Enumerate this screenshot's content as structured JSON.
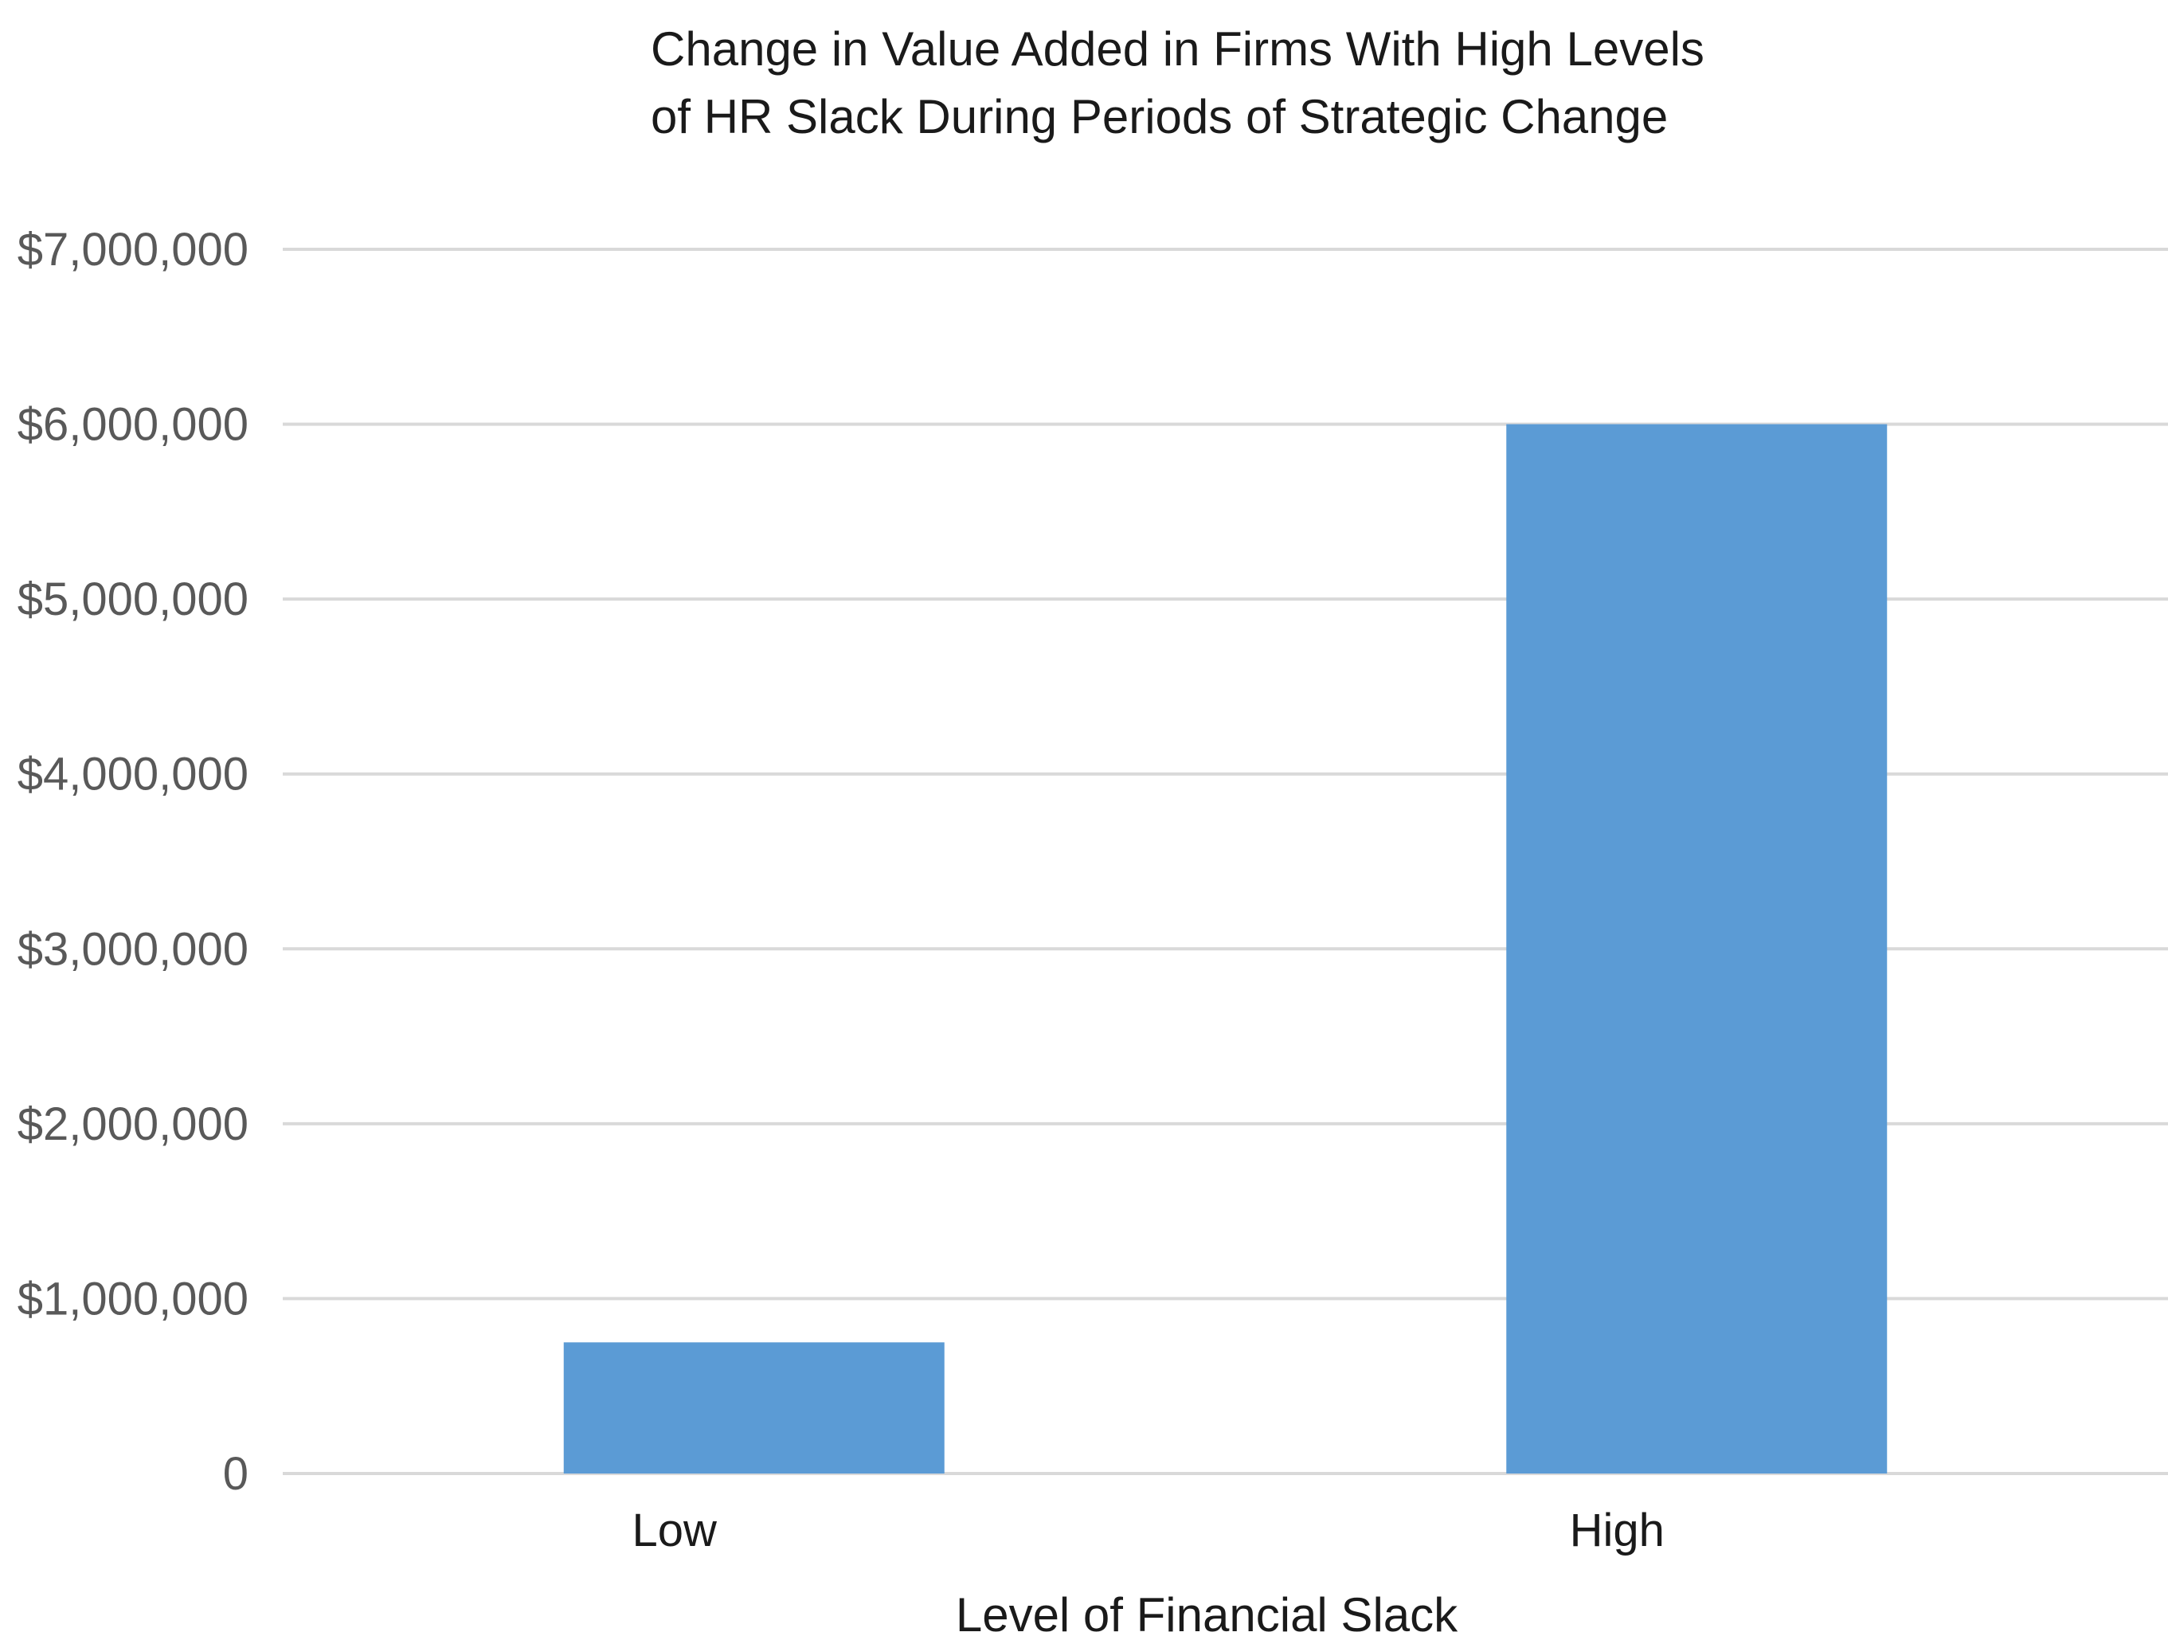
{
  "chart_data": {
    "type": "bar",
    "title": "Change in Value Added in Firms With High Levels of HR Slack During Periods of Strategic Change",
    "title_lines": [
      "Change in Value Added in Firms With High Levels",
      "of HR Slack During Periods of Strategic Change"
    ],
    "xlabel": "Level of Financial Slack",
    "ylabel": "",
    "categories": [
      "Low",
      "High"
    ],
    "values": [
      750000,
      6000000
    ],
    "ylim": [
      0,
      7000000
    ],
    "y_ticks": [
      0,
      1000000,
      2000000,
      3000000,
      4000000,
      5000000,
      6000000,
      7000000
    ],
    "y_tick_labels": [
      "0",
      "$1,000,000",
      "$2,000,000",
      "$3,000,000",
      "$4,000,000",
      "$5,000,000",
      "$6,000,000",
      "$7,000,000"
    ],
    "grid": true,
    "legend": "none",
    "colors": {
      "bar": "#5b9bd5",
      "grid": "#d9d9d9",
      "tick_text": "#595959",
      "text": "#1a1a1a"
    }
  }
}
